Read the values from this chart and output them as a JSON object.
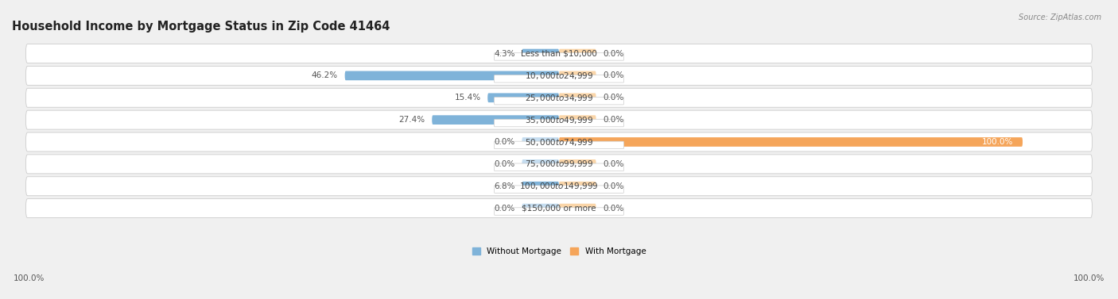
{
  "title": "Household Income by Mortgage Status in Zip Code 41464",
  "source": "Source: ZipAtlas.com",
  "categories": [
    "Less than $10,000",
    "$10,000 to $24,999",
    "$25,000 to $34,999",
    "$35,000 to $49,999",
    "$50,000 to $74,999",
    "$75,000 to $99,999",
    "$100,000 to $149,999",
    "$150,000 or more"
  ],
  "without_mortgage": [
    4.3,
    46.2,
    15.4,
    27.4,
    0.0,
    0.0,
    6.8,
    0.0
  ],
  "with_mortgage": [
    0.0,
    0.0,
    0.0,
    0.0,
    100.0,
    0.0,
    0.0,
    0.0
  ],
  "without_mortgage_color": "#7fb3d9",
  "without_mortgage_color_light": "#c5ddf0",
  "with_mortgage_color": "#f5a55a",
  "with_mortgage_color_light": "#fad5a8",
  "row_bg_color": "#f2f2f2",
  "row_border_color": "#cccccc",
  "label_bg_color": "#ffffff",
  "background_color": "#f0f0f0",
  "title_fontsize": 10.5,
  "label_fontsize": 7.5,
  "source_fontsize": 7,
  "max_val": 100.0,
  "left_axis_label": "100.0%",
  "right_axis_label": "100.0%",
  "legend_label_wo": "Without Mortgage",
  "legend_label_wm": "With Mortgage"
}
